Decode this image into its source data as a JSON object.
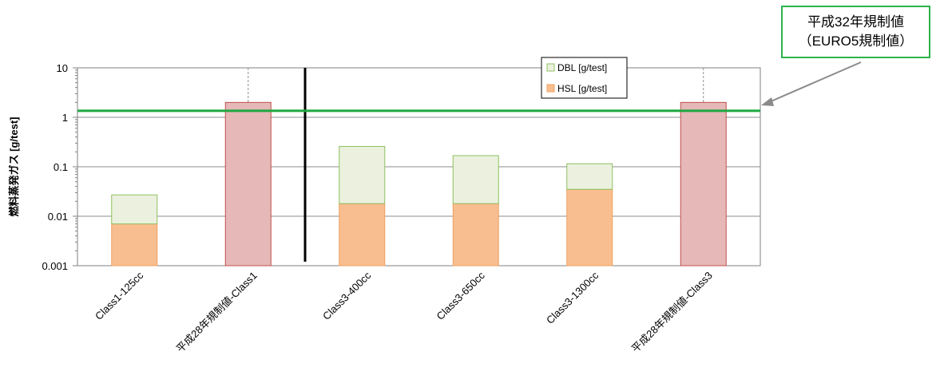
{
  "chart_data": {
    "type": "bar",
    "stacked": true,
    "yscale": "log",
    "ylim": [
      0.001,
      10
    ],
    "yticks": [
      "0.001",
      "0.01",
      "0.1",
      "1",
      "10"
    ],
    "ylabel": "燃料蒸発ガス [g/test]",
    "xlabel": "",
    "categories": [
      "Class1-125cc",
      "平成28年規制値-Class1",
      "Class3-400cc",
      "Class3-650cc",
      "Class3-1300cc",
      "平成28年規制値-Class3"
    ],
    "series": [
      {
        "name": "HSL [g/test]",
        "color": "#f8be90",
        "edge": "#f0a060",
        "values": [
          0.007,
          null,
          0.018,
          0.018,
          0.035,
          null
        ]
      },
      {
        "name": "DBL [g/test]",
        "color": "#ebf1de",
        "edge": "#8fc060",
        "values": [
          0.02,
          null,
          0.24,
          0.15,
          0.08,
          null
        ]
      },
      {
        "name": "",
        "color": "#e6b8b8",
        "edge": "#c0504d",
        "values": [
          null,
          2,
          null,
          null,
          null,
          2
        ]
      }
    ],
    "reference_line": {
      "value": 1.35,
      "color": "#1fa83f"
    },
    "grid": true,
    "legend": "top-right",
    "annotation": {
      "line1": "平成32年規制値",
      "line2": "（EURO5規制値）"
    }
  }
}
